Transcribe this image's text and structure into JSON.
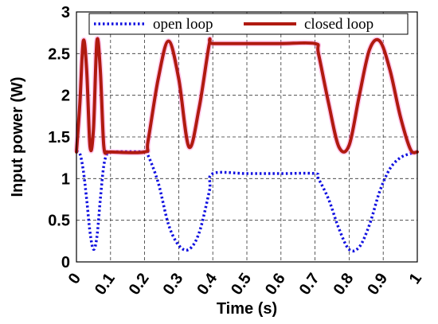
{
  "chart_data": {
    "type": "line",
    "title": "",
    "xlabel": "Time (s)",
    "ylabel": "Input power (W)",
    "xlim": [
      0,
      1
    ],
    "ylim": [
      0,
      3
    ],
    "x_ticks": [
      0,
      0.1,
      0.2,
      0.3,
      0.4,
      0.5,
      0.6,
      0.7,
      0.8,
      0.9,
      1
    ],
    "x_tick_labels": [
      "0",
      "0.1",
      "0.2",
      "0.3",
      "0.4",
      "0.5",
      "0.6",
      "0.7",
      "0.8",
      "0.9",
      "1"
    ],
    "y_ticks": [
      0,
      0.5,
      1,
      1.5,
      2,
      2.5,
      3
    ],
    "y_tick_labels": [
      "0",
      "0.5",
      "1",
      "1.5",
      "2",
      "2.5",
      "3"
    ],
    "grid": true,
    "legend_position": "top",
    "series": [
      {
        "name": "open loop",
        "color": "#1010e0",
        "style": "dotted",
        "x": [
          0,
          0.01,
          0.02,
          0.03,
          0.04,
          0.05,
          0.06,
          0.07,
          0.08,
          0.09,
          0.1,
          0.2,
          0.21,
          0.24,
          0.27,
          0.3,
          0.33,
          0.36,
          0.39,
          0.4,
          0.5,
          0.6,
          0.7,
          0.71,
          0.74,
          0.77,
          0.8,
          0.83,
          0.86,
          0.89,
          0.92,
          0.95,
          0.98,
          1
        ],
        "y": [
          1.32,
          1.3,
          1.1,
          0.75,
          0.35,
          0.15,
          0.3,
          0.75,
          1.15,
          1.3,
          1.32,
          1.32,
          1.28,
          0.95,
          0.45,
          0.2,
          0.15,
          0.35,
          0.85,
          1.06,
          1.06,
          1.06,
          1.06,
          1.0,
          0.75,
          0.4,
          0.15,
          0.18,
          0.45,
          0.85,
          1.12,
          1.25,
          1.3,
          1.32
        ]
      },
      {
        "name": "closed loop",
        "color": "#b01a10",
        "style": "solid",
        "x": [
          0,
          0.01,
          0.02,
          0.03,
          0.04,
          0.05,
          0.06,
          0.07,
          0.08,
          0.09,
          0.1,
          0.2,
          0.21,
          0.24,
          0.27,
          0.3,
          0.33,
          0.36,
          0.39,
          0.4,
          0.5,
          0.6,
          0.7,
          0.71,
          0.74,
          0.77,
          0.8,
          0.83,
          0.86,
          0.89,
          0.92,
          0.95,
          0.98,
          1
        ],
        "y": [
          1.32,
          1.9,
          2.65,
          2.3,
          1.38,
          1.6,
          2.65,
          2.3,
          1.4,
          1.32,
          1.32,
          1.32,
          1.45,
          2.2,
          2.65,
          2.2,
          1.38,
          1.85,
          2.62,
          2.62,
          2.62,
          2.62,
          2.62,
          2.5,
          1.9,
          1.38,
          1.4,
          2.0,
          2.55,
          2.65,
          2.3,
          1.75,
          1.35,
          1.32
        ]
      }
    ]
  }
}
